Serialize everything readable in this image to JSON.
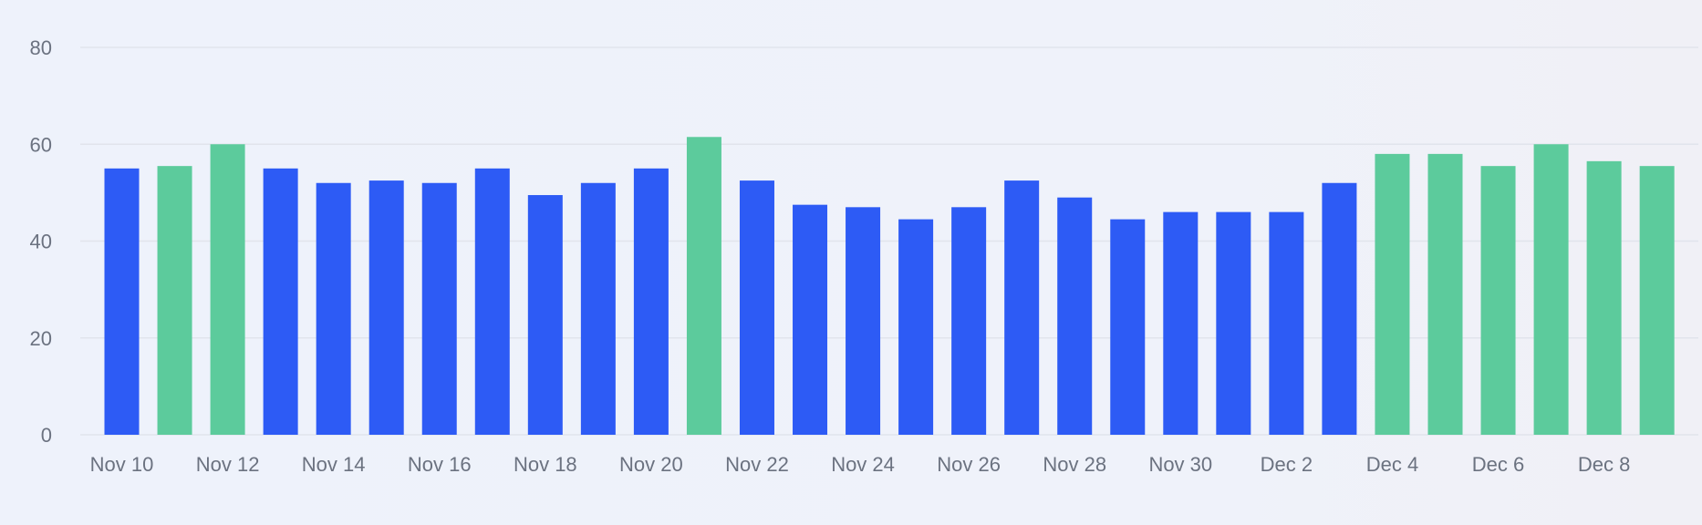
{
  "chart_data": {
    "type": "bar",
    "title": "",
    "xlabel": "",
    "ylabel": "",
    "ylim": [
      0,
      80
    ],
    "yticks": [
      0,
      20,
      40,
      60,
      80
    ],
    "grid": true,
    "legend": "none",
    "colors": {
      "primary": "#2d5bf5",
      "highlight": "#5ccb9c"
    },
    "categories": [
      "Nov 10",
      "Nov 11",
      "Nov 12",
      "Nov 13",
      "Nov 14",
      "Nov 15",
      "Nov 16",
      "Nov 17",
      "Nov 18",
      "Nov 19",
      "Nov 20",
      "Nov 21",
      "Nov 22",
      "Nov 23",
      "Nov 24",
      "Nov 25",
      "Nov 26",
      "Nov 27",
      "Nov 28",
      "Nov 29",
      "Nov 30",
      "Dec 1",
      "Dec 2",
      "Dec 3",
      "Dec 4",
      "Dec 5",
      "Dec 6",
      "Dec 7",
      "Dec 8",
      "Dec 9"
    ],
    "xtick_labels": [
      "Nov 10",
      "Nov 12",
      "Nov 14",
      "Nov 16",
      "Nov 18",
      "Nov 20",
      "Nov 22",
      "Nov 24",
      "Nov 26",
      "Nov 28",
      "Nov 30",
      "Dec 2",
      "Dec 4",
      "Dec 6",
      "Dec 8"
    ],
    "values": [
      55,
      55.5,
      60,
      55,
      52,
      52.5,
      52,
      55,
      49.5,
      52,
      55,
      61.5,
      52.5,
      47.5,
      47,
      44.5,
      47,
      52.5,
      49,
      44.5,
      46,
      46,
      46,
      52,
      58,
      58,
      55.5,
      60,
      56.5,
      55.5
    ],
    "highlighted": [
      false,
      true,
      true,
      false,
      false,
      false,
      false,
      false,
      false,
      false,
      false,
      true,
      false,
      false,
      false,
      false,
      false,
      false,
      false,
      false,
      false,
      false,
      false,
      false,
      true,
      true,
      true,
      true,
      true,
      true
    ]
  }
}
